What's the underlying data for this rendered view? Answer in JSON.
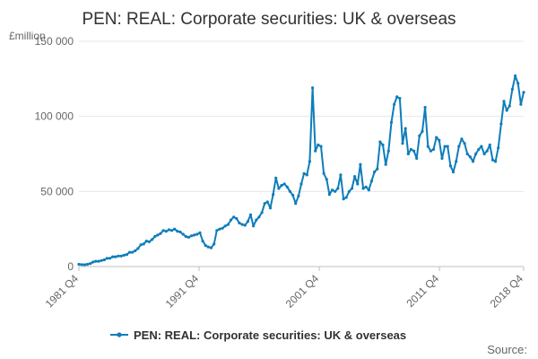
{
  "chart_data": {
    "type": "line",
    "title": "PEN: REAL: Corporate securities: UK & overseas",
    "unit_label": "£million",
    "source_label": "Source:",
    "y_ticks": [
      {
        "value": 0,
        "label": "0"
      },
      {
        "value": 50000,
        "label": "50 000"
      },
      {
        "value": 100000,
        "label": "100 000"
      },
      {
        "value": 150000,
        "label": "150 000"
      }
    ],
    "ylim": [
      0,
      150000
    ],
    "x_range": [
      1981.75,
      2018.75
    ],
    "x_ticks": [
      {
        "value": 1981.75,
        "label": "1981 Q4"
      },
      {
        "value": 1991.75,
        "label": "1991 Q4"
      },
      {
        "value": 2001.75,
        "label": "2001 Q4"
      },
      {
        "value": 2011.75,
        "label": "2011 Q4"
      },
      {
        "value": 2018.75,
        "label": "2018 Q4"
      }
    ],
    "grid": true,
    "legend_position": "bottom-center",
    "series": [
      {
        "name": "PEN: REAL: Corporate securities: UK & overseas",
        "color": "#0f7dba",
        "points": [
          [
            1981.75,
            1500
          ],
          [
            1982.0,
            1300
          ],
          [
            1982.25,
            1200
          ],
          [
            1982.5,
            1500
          ],
          [
            1982.75,
            2000
          ],
          [
            1983.0,
            3000
          ],
          [
            1983.25,
            3500
          ],
          [
            1983.5,
            3500
          ],
          [
            1983.75,
            4000
          ],
          [
            1984.0,
            4500
          ],
          [
            1984.25,
            5500
          ],
          [
            1984.5,
            5500
          ],
          [
            1984.75,
            6500
          ],
          [
            1985.0,
            6500
          ],
          [
            1985.25,
            7000
          ],
          [
            1985.5,
            7000
          ],
          [
            1985.75,
            7500
          ],
          [
            1986.0,
            8000
          ],
          [
            1986.25,
            9500
          ],
          [
            1986.5,
            9500
          ],
          [
            1986.75,
            10500
          ],
          [
            1987.0,
            12000
          ],
          [
            1987.25,
            14500
          ],
          [
            1987.5,
            15000
          ],
          [
            1987.75,
            17000
          ],
          [
            1988.0,
            16500
          ],
          [
            1988.25,
            18000
          ],
          [
            1988.5,
            20000
          ],
          [
            1988.75,
            21000
          ],
          [
            1989.0,
            22000
          ],
          [
            1989.25,
            24000
          ],
          [
            1989.5,
            23500
          ],
          [
            1989.75,
            24500
          ],
          [
            1990.0,
            24000
          ],
          [
            1990.25,
            25000
          ],
          [
            1990.5,
            23500
          ],
          [
            1990.75,
            23000
          ],
          [
            1991.0,
            21500
          ],
          [
            1991.25,
            20000
          ],
          [
            1991.5,
            19500
          ],
          [
            1991.75,
            20500
          ],
          [
            1992.0,
            21000
          ],
          [
            1992.25,
            21500
          ],
          [
            1992.5,
            22500
          ],
          [
            1992.75,
            17000
          ],
          [
            1993.0,
            14000
          ],
          [
            1993.25,
            13000
          ],
          [
            1993.5,
            12500
          ],
          [
            1993.75,
            15000
          ],
          [
            1994.0,
            24000
          ],
          [
            1994.25,
            25000
          ],
          [
            1994.5,
            25500
          ],
          [
            1994.75,
            27000
          ],
          [
            1995.0,
            28000
          ],
          [
            1995.25,
            31000
          ],
          [
            1995.5,
            33000
          ],
          [
            1995.75,
            32000
          ],
          [
            1996.0,
            29000
          ],
          [
            1996.25,
            28000
          ],
          [
            1996.5,
            27500
          ],
          [
            1996.75,
            30000
          ],
          [
            1997.0,
            34500
          ],
          [
            1997.25,
            27000
          ],
          [
            1997.5,
            31000
          ],
          [
            1997.75,
            33000
          ],
          [
            1998.0,
            36000
          ],
          [
            1998.25,
            42000
          ],
          [
            1998.5,
            43000
          ],
          [
            1998.75,
            39000
          ],
          [
            1999.0,
            48000
          ],
          [
            1999.25,
            59000
          ],
          [
            1999.5,
            52000
          ],
          [
            1999.75,
            54000
          ],
          [
            2000.0,
            55000
          ],
          [
            2000.25,
            53000
          ],
          [
            2000.5,
            50000
          ],
          [
            2000.75,
            47500
          ],
          [
            2001.0,
            42000
          ],
          [
            2001.25,
            47000
          ],
          [
            2001.5,
            55000
          ],
          [
            2001.75,
            62000
          ],
          [
            2002.0,
            61000
          ],
          [
            2002.25,
            70000
          ],
          [
            2002.5,
            119000
          ],
          [
            2002.75,
            77000
          ],
          [
            2003.0,
            81000
          ],
          [
            2003.25,
            80000
          ],
          [
            2003.5,
            62000
          ],
          [
            2003.75,
            58000
          ],
          [
            2004.0,
            48000
          ],
          [
            2004.25,
            51000
          ],
          [
            2004.5,
            50000
          ],
          [
            2004.75,
            52000
          ],
          [
            2005.0,
            61000
          ],
          [
            2005.25,
            45000
          ],
          [
            2005.5,
            46000
          ],
          [
            2005.75,
            50000
          ],
          [
            2006.0,
            52000
          ],
          [
            2006.25,
            60000
          ],
          [
            2006.5,
            55000
          ],
          [
            2006.75,
            68000
          ],
          [
            2007.0,
            52000
          ],
          [
            2007.25,
            53000
          ],
          [
            2007.5,
            51000
          ],
          [
            2007.75,
            57000
          ],
          [
            2008.0,
            63000
          ],
          [
            2008.25,
            65000
          ],
          [
            2008.5,
            83000
          ],
          [
            2008.75,
            81000
          ],
          [
            2009.0,
            68000
          ],
          [
            2009.25,
            77000
          ],
          [
            2009.5,
            96000
          ],
          [
            2009.75,
            108000
          ],
          [
            2010.0,
            113000
          ],
          [
            2010.25,
            112000
          ],
          [
            2010.5,
            82000
          ],
          [
            2010.75,
            92000
          ],
          [
            2011.0,
            75000
          ],
          [
            2011.25,
            78000
          ],
          [
            2011.5,
            77000
          ],
          [
            2011.75,
            72000
          ],
          [
            2012.0,
            87000
          ],
          [
            2012.25,
            90000
          ],
          [
            2012.5,
            106000
          ],
          [
            2012.75,
            80000
          ],
          [
            2013.0,
            77000
          ],
          [
            2013.25,
            78000
          ],
          [
            2013.5,
            86000
          ],
          [
            2013.75,
            84000
          ],
          [
            2014.0,
            72000
          ],
          [
            2014.25,
            80000
          ],
          [
            2014.5,
            80000
          ],
          [
            2014.75,
            67000
          ],
          [
            2015.0,
            63000
          ],
          [
            2015.25,
            70000
          ],
          [
            2015.5,
            80000
          ],
          [
            2015.75,
            85000
          ],
          [
            2016.0,
            82000
          ],
          [
            2016.25,
            75000
          ],
          [
            2016.5,
            73000
          ],
          [
            2016.75,
            70000
          ],
          [
            2017.0,
            75000
          ],
          [
            2017.25,
            78000
          ],
          [
            2017.5,
            80000
          ],
          [
            2017.75,
            75000
          ],
          [
            2018.0,
            77000
          ],
          [
            2018.25,
            81000
          ],
          [
            2018.5,
            71000
          ],
          [
            2018.75,
            70000
          ],
          [
            2019.0,
            79000
          ],
          [
            2019.25,
            95000
          ],
          [
            2019.5,
            110000
          ],
          [
            2019.75,
            104000
          ],
          [
            2020.0,
            107000
          ],
          [
            2020.25,
            118000
          ],
          [
            2020.5,
            127000
          ],
          [
            2020.75,
            122000
          ],
          [
            2021.0,
            108000
          ],
          [
            2021.25,
            116000
          ]
        ]
      }
    ]
  }
}
